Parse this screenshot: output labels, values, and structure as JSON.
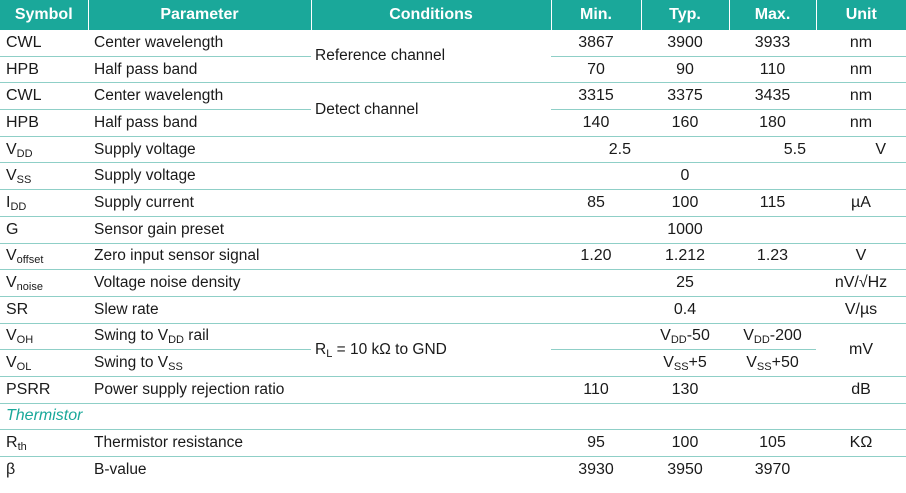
{
  "headers": {
    "symbol": "Symbol",
    "parameter": "Parameter",
    "conditions": "Conditions",
    "min": "Min.",
    "typ": "Typ.",
    "max": "Max.",
    "unit": "Unit"
  },
  "rows": {
    "cwl_ref": {
      "sym": "CWL",
      "param": "Center wavelength",
      "min": "3867",
      "typ": "3900",
      "max": "3933",
      "unit": "nm"
    },
    "hpb_ref": {
      "sym": "HPB",
      "param": "Half pass band",
      "min": "70",
      "typ": "90",
      "max": "110",
      "unit": "nm"
    },
    "cwl_det": {
      "sym": "CWL",
      "param": "Center wavelength",
      "min": "3315",
      "typ": "3375",
      "max": "3435",
      "unit": "nm"
    },
    "hpb_det": {
      "sym": "HPB",
      "param": "Half pass band",
      "min": "140",
      "typ": "160",
      "max": "180",
      "unit": "nm"
    },
    "vdd": {
      "sym": "V",
      "sub": "DD",
      "param": "Supply voltage",
      "min": "2.5",
      "max": "5.5",
      "unit": "V"
    },
    "vss": {
      "sym": "V",
      "sub": "SS",
      "param": "Supply voltage",
      "typ": "0"
    },
    "idd": {
      "sym": "I",
      "sub": "DD",
      "param": "Supply current",
      "min": "85",
      "typ": "100",
      "max": "115",
      "unit": "µA"
    },
    "g": {
      "sym": "G",
      "param": "Sensor gain preset",
      "typ": "1000"
    },
    "voffset": {
      "sym": "V",
      "sub": "offset",
      "param": "Zero input sensor signal",
      "min": "1.20",
      "typ": "1.212",
      "max": "1.23",
      "unit": "V"
    },
    "vnoise": {
      "sym": "V",
      "sub": "noise",
      "param": "Voltage noise density",
      "typ": "25",
      "unit": "nV/√Hz"
    },
    "sr": {
      "sym": "SR",
      "param": "Slew rate",
      "typ": "0.4",
      "unit": "V/µs"
    },
    "voh": {
      "sym": "V",
      "sub": "OH",
      "param_a": "Swing to V",
      "param_sub": "DD",
      "param_b": " rail",
      "typ_a": "V",
      "typ_sub": "DD",
      "typ_b": "-50",
      "max_a": "V",
      "max_sub": "DD",
      "max_b": "-200"
    },
    "vol": {
      "sym": "V",
      "sub": "OL",
      "param_a": "Swing to V",
      "param_sub": "SS",
      "typ_a": "V",
      "typ_sub": "SS",
      "typ_b": "+5",
      "max_a": "V",
      "max_sub": "SS",
      "max_b": "+50"
    },
    "swing_unit": "mV",
    "psrr": {
      "sym": "PSRR",
      "param": "Power supply rejection ratio",
      "min": "110",
      "typ": "130",
      "unit": "dB"
    },
    "rth": {
      "sym": "R",
      "sub": "th",
      "param": "Thermistor resistance",
      "min": "95",
      "typ": "100",
      "max": "105",
      "unit": "KΩ"
    },
    "beta": {
      "sym": "β",
      "param": "B-value",
      "min": "3930",
      "typ": "3950",
      "max": "3970"
    }
  },
  "conditions": {
    "reference": "Reference channel",
    "detect": "Detect channel",
    "rl_a": "R",
    "rl_sub": "L",
    "rl_b": " = 10 kΩ to GND"
  },
  "section": "Thermistor"
}
